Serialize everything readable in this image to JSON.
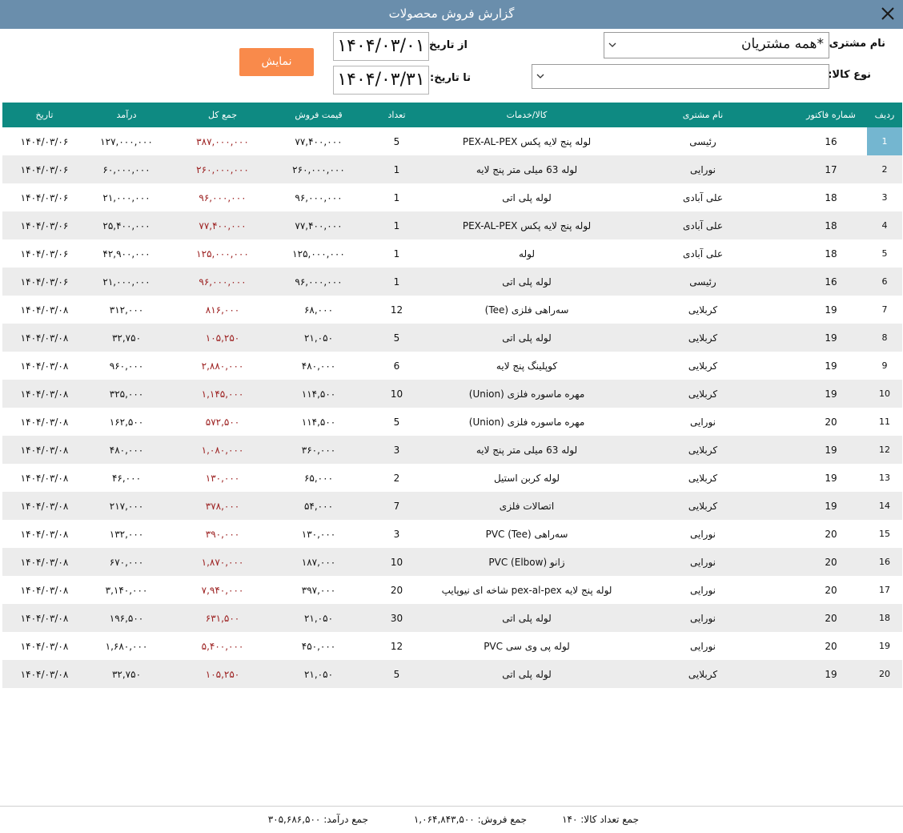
{
  "window": {
    "title": "گزارش فروش محصولات"
  },
  "filters": {
    "customer_label": "نام مشتری:",
    "customer_value": "*همه مشتریان",
    "product_type_label": "نوع کالا:",
    "product_type_value": "",
    "from_label": "از تاریخ:",
    "from_value": "۱۴۰۴/۰۳/۰۱",
    "to_label": "تا تاریخ:",
    "to_value": "۱۴۰۴/۰۳/۳۱",
    "show_button": "نمایش"
  },
  "table": {
    "headers": {
      "idx": "ردیف",
      "invoice": "شماره فاکتور",
      "customer": "نام مشتری",
      "product": "کالا/خدمات",
      "qty": "تعداد",
      "price": "قیمت فروش",
      "total": "جمع کل",
      "income": "درآمد",
      "date": "تاریخ"
    },
    "rows": [
      {
        "idx": "1",
        "invoice": "16",
        "customer": "رئیسی",
        "product": "لوله پنج لایه پکس PEX-AL-PEX",
        "qty": "5",
        "price": "۷۷,۴۰۰,۰۰۰",
        "total": "۳۸۷,۰۰۰,۰۰۰",
        "income": "۱۲۷,۰۰۰,۰۰۰",
        "date": "۱۴۰۴/۰۳/۰۶"
      },
      {
        "idx": "2",
        "invoice": "17",
        "customer": "نورایی",
        "product": "لوله 63 میلی متر پنج لایه",
        "qty": "1",
        "price": "۲۶۰,۰۰۰,۰۰۰",
        "total": "۲۶۰,۰۰۰,۰۰۰",
        "income": "۶۰,۰۰۰,۰۰۰",
        "date": "۱۴۰۴/۰۳/۰۶"
      },
      {
        "idx": "3",
        "invoice": "18",
        "customer": "علی آبادی",
        "product": "لوله پلی اتی",
        "qty": "1",
        "price": "۹۶,۰۰۰,۰۰۰",
        "total": "۹۶,۰۰۰,۰۰۰",
        "income": "۲۱,۰۰۰,۰۰۰",
        "date": "۱۴۰۴/۰۳/۰۶"
      },
      {
        "idx": "4",
        "invoice": "18",
        "customer": "علی آبادی",
        "product": "لوله پنج لایه پکس PEX-AL-PEX",
        "qty": "1",
        "price": "۷۷,۴۰۰,۰۰۰",
        "total": "۷۷,۴۰۰,۰۰۰",
        "income": "۲۵,۴۰۰,۰۰۰",
        "date": "۱۴۰۴/۰۳/۰۶"
      },
      {
        "idx": "5",
        "invoice": "18",
        "customer": "علی آبادی",
        "product": "لوله",
        "qty": "1",
        "price": "۱۲۵,۰۰۰,۰۰۰",
        "total": "۱۲۵,۰۰۰,۰۰۰",
        "income": "۴۲,۹۰۰,۰۰۰",
        "date": "۱۴۰۴/۰۳/۰۶"
      },
      {
        "idx": "6",
        "invoice": "16",
        "customer": "رئیسی",
        "product": "لوله پلی اتی",
        "qty": "1",
        "price": "۹۶,۰۰۰,۰۰۰",
        "total": "۹۶,۰۰۰,۰۰۰",
        "income": "۲۱,۰۰۰,۰۰۰",
        "date": "۱۴۰۴/۰۳/۰۶"
      },
      {
        "idx": "7",
        "invoice": "19",
        "customer": "کربلایی",
        "product": "سه‌راهی فلزی (Tee)",
        "qty": "12",
        "price": "۶۸,۰۰۰",
        "total": "۸۱۶,۰۰۰",
        "income": "۳۱۲,۰۰۰",
        "date": "۱۴۰۴/۰۳/۰۸"
      },
      {
        "idx": "8",
        "invoice": "19",
        "customer": "کربلایی",
        "product": "لوله پلی اتی",
        "qty": "5",
        "price": "۲۱,۰۵۰",
        "total": "۱۰۵,۲۵۰",
        "income": "۳۲,۷۵۰",
        "date": "۱۴۰۴/۰۳/۰۸"
      },
      {
        "idx": "9",
        "invoice": "19",
        "customer": "کربلایی",
        "product": "کوپلینگ پنج لایه",
        "qty": "6",
        "price": "۴۸۰,۰۰۰",
        "total": "۲,۸۸۰,۰۰۰",
        "income": "۹۶۰,۰۰۰",
        "date": "۱۴۰۴/۰۳/۰۸"
      },
      {
        "idx": "10",
        "invoice": "19",
        "customer": "کربلایی",
        "product": "مهره ماسوره فلزی (Union)",
        "qty": "10",
        "price": "۱۱۴,۵۰۰",
        "total": "۱,۱۴۵,۰۰۰",
        "income": "۳۲۵,۰۰۰",
        "date": "۱۴۰۴/۰۳/۰۸"
      },
      {
        "idx": "11",
        "invoice": "20",
        "customer": "نورایی",
        "product": "مهره ماسوره فلزی (Union)",
        "qty": "5",
        "price": "۱۱۴,۵۰۰",
        "total": "۵۷۲,۵۰۰",
        "income": "۱۶۲,۵۰۰",
        "date": "۱۴۰۴/۰۳/۰۸"
      },
      {
        "idx": "12",
        "invoice": "19",
        "customer": "کربلایی",
        "product": "لوله 63 میلی متر پنج لایه",
        "qty": "3",
        "price": "۳۶۰,۰۰۰",
        "total": "۱,۰۸۰,۰۰۰",
        "income": "۴۸۰,۰۰۰",
        "date": "۱۴۰۴/۰۳/۰۸"
      },
      {
        "idx": "13",
        "invoice": "19",
        "customer": "کربلایی",
        "product": "لوله کربن استیل",
        "qty": "2",
        "price": "۶۵,۰۰۰",
        "total": "۱۳۰,۰۰۰",
        "income": "۴۶,۰۰۰",
        "date": "۱۴۰۴/۰۳/۰۸"
      },
      {
        "idx": "14",
        "invoice": "19",
        "customer": "کربلایی",
        "product": "اتصالات فلزی",
        "qty": "7",
        "price": "۵۴,۰۰۰",
        "total": "۳۷۸,۰۰۰",
        "income": "۲۱۷,۰۰۰",
        "date": "۱۴۰۴/۰۳/۰۸"
      },
      {
        "idx": "15",
        "invoice": "20",
        "customer": "نورایی",
        "product": "سه‌راهی (Tee) PVC",
        "qty": "3",
        "price": "۱۳۰,۰۰۰",
        "total": "۳۹۰,۰۰۰",
        "income": "۱۳۲,۰۰۰",
        "date": "۱۴۰۴/۰۳/۰۸"
      },
      {
        "idx": "16",
        "invoice": "20",
        "customer": "نورایی",
        "product": "زانو (Elbow) PVC",
        "qty": "10",
        "price": "۱۸۷,۰۰۰",
        "total": "۱,۸۷۰,۰۰۰",
        "income": "۶۷۰,۰۰۰",
        "date": "۱۴۰۴/۰۳/۰۸"
      },
      {
        "idx": "17",
        "invoice": "20",
        "customer": "نورایی",
        "product": "لوله پنج لایه pex-al-pex شاخه ای نیوپایپ",
        "qty": "20",
        "price": "۳۹۷,۰۰۰",
        "total": "۷,۹۴۰,۰۰۰",
        "income": "۳,۱۴۰,۰۰۰",
        "date": "۱۴۰۴/۰۳/۰۸"
      },
      {
        "idx": "18",
        "invoice": "20",
        "customer": "نورایی",
        "product": "لوله پلی اتی",
        "qty": "30",
        "price": "۲۱,۰۵۰",
        "total": "۶۳۱,۵۰۰",
        "income": "۱۹۶,۵۰۰",
        "date": "۱۴۰۴/۰۳/۰۸"
      },
      {
        "idx": "19",
        "invoice": "20",
        "customer": "نورایی",
        "product": "لوله پی وی سی PVC",
        "qty": "12",
        "price": "۴۵۰,۰۰۰",
        "total": "۵,۴۰۰,۰۰۰",
        "income": "۱,۶۸۰,۰۰۰",
        "date": "۱۴۰۴/۰۳/۰۸"
      },
      {
        "idx": "20",
        "invoice": "19",
        "customer": "کربلایی",
        "product": "لوله پلی اتی",
        "qty": "5",
        "price": "۲۱,۰۵۰",
        "total": "۱۰۵,۲۵۰",
        "income": "۳۲,۷۵۰",
        "date": "۱۴۰۴/۰۳/۰۸"
      }
    ]
  },
  "summary": {
    "qty_label": "جمع تعداد کالا:",
    "qty_value": "۱۴۰",
    "sales_label": "جمع فروش:",
    "sales_value": "۱,۰۶۴,۸۴۳,۵۰۰",
    "income_label": "جمع درآمد:",
    "income_value": "۳۰۵,۶۸۶,۵۰۰"
  },
  "colors": {
    "titlebar": "#6a8eac",
    "header": "#0e8a82",
    "show_button": "#f98a4b",
    "total_text": "#9c2020",
    "selected_index": "#74b6d0"
  }
}
